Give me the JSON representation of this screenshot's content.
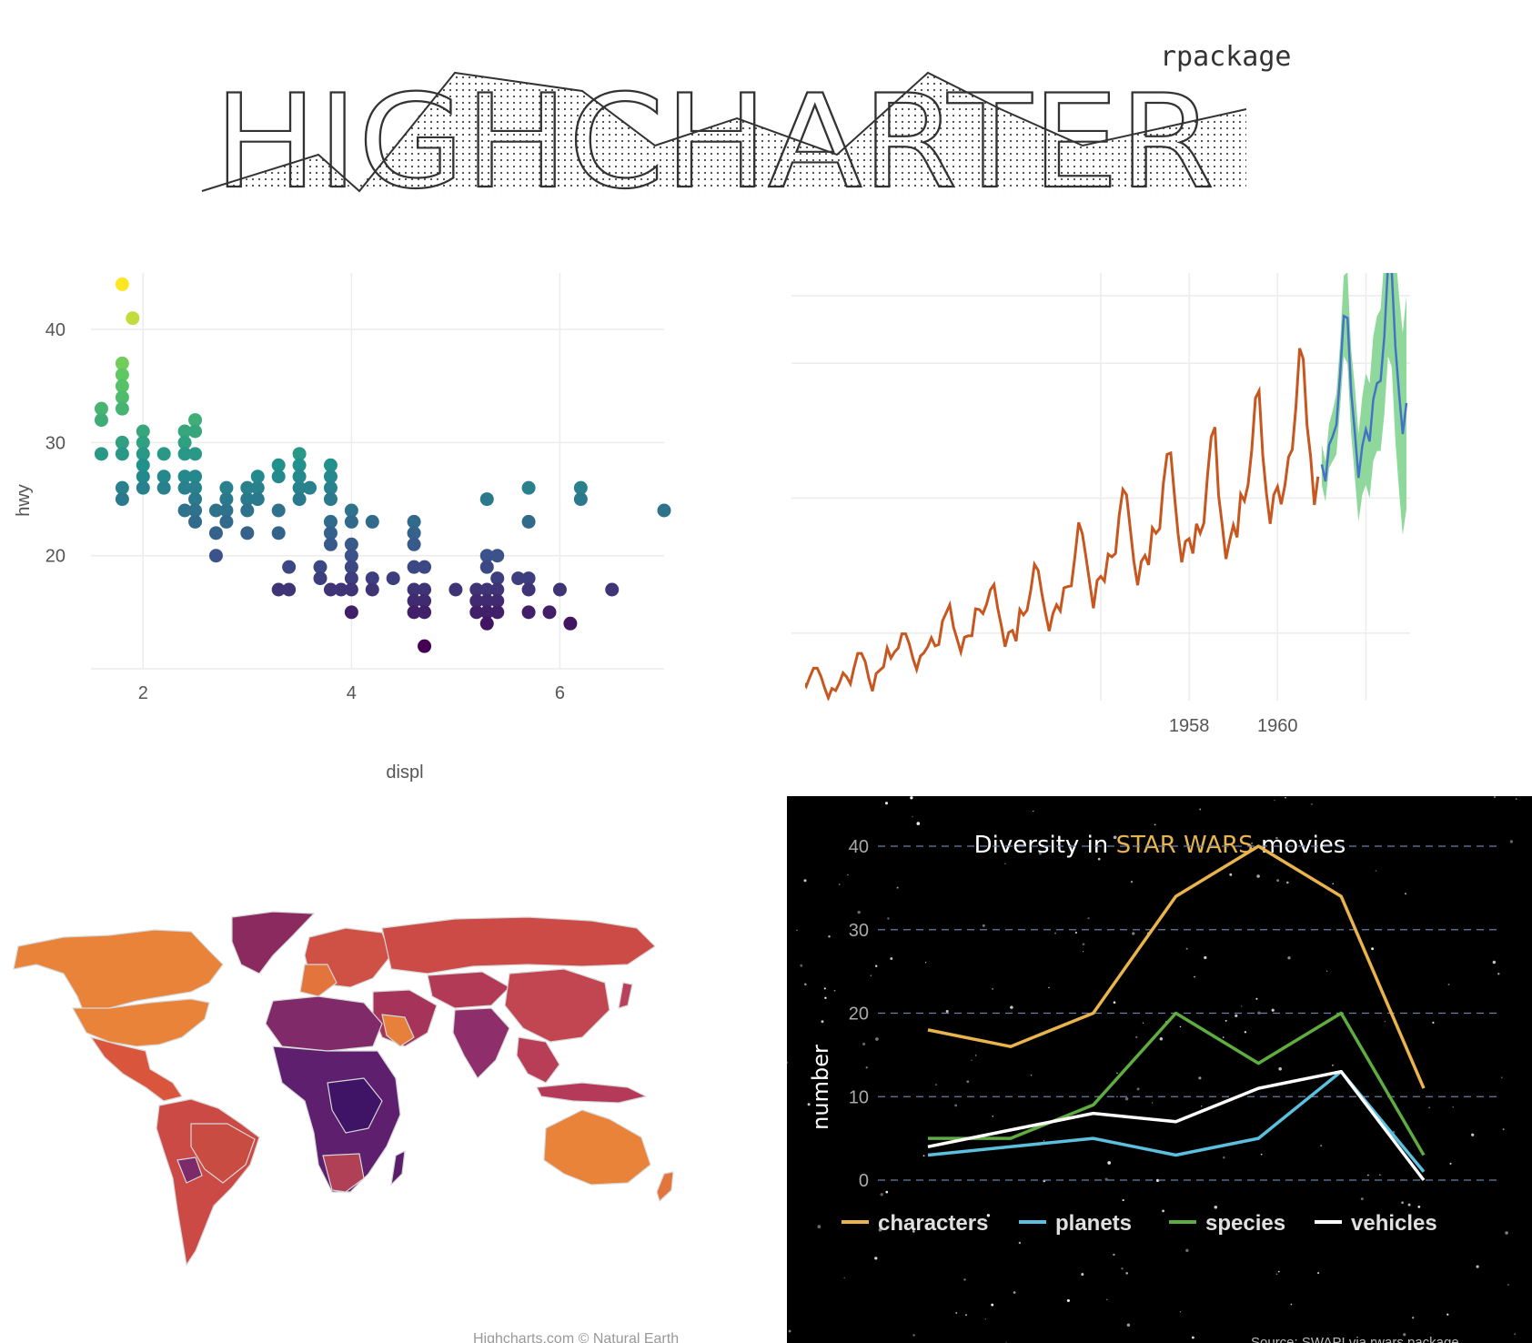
{
  "header": {
    "logo_text": "HIGHCHARTER",
    "subtitle": "rpackage"
  },
  "colors": {
    "airpass_line": "#c8561f",
    "forecast_line": "#4472c4",
    "forecast_band": "#8ed89c",
    "starwars_bg": "#000000",
    "starwars_title_accent": "#e9b44c"
  },
  "charts": [
    {
      "type": "scatter",
      "title": "",
      "xlabel": "displ",
      "ylabel": "hwy",
      "xlim": [
        1.5,
        7.0
      ],
      "ylim": [
        10,
        45
      ],
      "xticks": [
        2,
        4,
        6
      ],
      "yticks": [
        20,
        30,
        40
      ],
      "color_scale": "viridis",
      "color_by": "hwy",
      "points": [
        [
          1.8,
          44
        ],
        [
          1.9,
          41
        ],
        [
          1.8,
          37
        ],
        [
          1.8,
          36
        ],
        [
          1.8,
          35
        ],
        [
          1.8,
          34
        ],
        [
          1.8,
          33
        ],
        [
          1.6,
          33
        ],
        [
          1.6,
          32
        ],
        [
          1.6,
          29
        ],
        [
          1.8,
          30
        ],
        [
          1.8,
          29
        ],
        [
          1.8,
          26
        ],
        [
          1.8,
          25
        ],
        [
          2.0,
          31
        ],
        [
          2.0,
          30
        ],
        [
          2.0,
          29
        ],
        [
          2.0,
          28
        ],
        [
          2.0,
          27
        ],
        [
          2.0,
          26
        ],
        [
          2.2,
          29
        ],
        [
          2.2,
          27
        ],
        [
          2.2,
          26
        ],
        [
          2.4,
          31
        ],
        [
          2.4,
          30
        ],
        [
          2.4,
          29
        ],
        [
          2.4,
          27
        ],
        [
          2.4,
          26
        ],
        [
          2.4,
          24
        ],
        [
          2.5,
          32
        ],
        [
          2.5,
          31
        ],
        [
          2.5,
          29
        ],
        [
          2.5,
          27
        ],
        [
          2.5,
          26
        ],
        [
          2.5,
          25
        ],
        [
          2.5,
          24
        ],
        [
          2.5,
          23
        ],
        [
          2.7,
          24
        ],
        [
          2.7,
          22
        ],
        [
          2.7,
          20
        ],
        [
          2.8,
          26
        ],
        [
          2.8,
          25
        ],
        [
          2.8,
          24
        ],
        [
          2.8,
          23
        ],
        [
          3.0,
          26
        ],
        [
          3.0,
          25
        ],
        [
          3.0,
          24
        ],
        [
          3.0,
          22
        ],
        [
          3.1,
          27
        ],
        [
          3.1,
          26
        ],
        [
          3.1,
          25
        ],
        [
          3.3,
          28
        ],
        [
          3.3,
          27
        ],
        [
          3.3,
          24
        ],
        [
          3.3,
          22
        ],
        [
          3.3,
          17
        ],
        [
          3.4,
          19
        ],
        [
          3.4,
          17
        ],
        [
          3.5,
          29
        ],
        [
          3.5,
          28
        ],
        [
          3.5,
          27
        ],
        [
          3.5,
          26
        ],
        [
          3.5,
          25
        ],
        [
          3.6,
          26
        ],
        [
          3.7,
          19
        ],
        [
          3.7,
          18
        ],
        [
          3.8,
          28
        ],
        [
          3.8,
          27
        ],
        [
          3.8,
          26
        ],
        [
          3.8,
          25
        ],
        [
          3.8,
          23
        ],
        [
          3.8,
          22
        ],
        [
          3.8,
          21
        ],
        [
          3.8,
          17
        ],
        [
          3.9,
          17
        ],
        [
          4.0,
          24
        ],
        [
          4.0,
          23
        ],
        [
          4.0,
          21
        ],
        [
          4.0,
          20
        ],
        [
          4.0,
          19
        ],
        [
          4.0,
          18
        ],
        [
          4.0,
          17
        ],
        [
          4.0,
          15
        ],
        [
          4.2,
          23
        ],
        [
          4.2,
          18
        ],
        [
          4.2,
          17
        ],
        [
          4.4,
          18
        ],
        [
          4.6,
          23
        ],
        [
          4.6,
          22
        ],
        [
          4.6,
          21
        ],
        [
          4.6,
          19
        ],
        [
          4.6,
          17
        ],
        [
          4.6,
          16
        ],
        [
          4.6,
          15
        ],
        [
          4.7,
          19
        ],
        [
          4.7,
          17
        ],
        [
          4.7,
          16
        ],
        [
          4.7,
          15
        ],
        [
          4.7,
          12
        ],
        [
          5.0,
          17
        ],
        [
          5.2,
          17
        ],
        [
          5.2,
          16
        ],
        [
          5.2,
          15
        ],
        [
          5.3,
          25
        ],
        [
          5.3,
          20
        ],
        [
          5.3,
          19
        ],
        [
          5.3,
          17
        ],
        [
          5.3,
          16
        ],
        [
          5.3,
          15
        ],
        [
          5.3,
          14
        ],
        [
          5.4,
          20
        ],
        [
          5.4,
          18
        ],
        [
          5.4,
          17
        ],
        [
          5.4,
          16
        ],
        [
          5.4,
          15
        ],
        [
          5.6,
          18
        ],
        [
          5.7,
          26
        ],
        [
          5.7,
          23
        ],
        [
          5.7,
          18
        ],
        [
          5.7,
          17
        ],
        [
          5.7,
          15
        ],
        [
          5.9,
          15
        ],
        [
          6.0,
          17
        ],
        [
          6.1,
          14
        ],
        [
          6.2,
          26
        ],
        [
          6.2,
          25
        ],
        [
          6.5,
          17
        ],
        [
          7.0,
          24
        ]
      ]
    },
    {
      "type": "line",
      "title": "",
      "xlabel": "",
      "ylabel": "",
      "xlim": [
        1949.0,
        1963.0
      ],
      "ylim": [
        100,
        700
      ],
      "xticks": [
        1958,
        1960
      ],
      "yticks": [
        400,
        600
      ],
      "series": [
        {
          "x_start": 1949.0,
          "x_step": 0.0833333,
          "values": [
            112,
            118,
            132,
            129,
            121,
            135,
            148,
            148,
            136,
            119,
            104,
            118,
            115,
            126,
            141,
            135,
            125,
            149,
            170,
            170,
            158,
            133,
            114,
            140,
            145,
            150,
            178,
            163,
            172,
            178,
            199,
            199,
            184,
            162,
            146,
            166,
            171,
            180,
            193,
            181,
            183,
            218,
            230,
            242,
            209,
            191,
            172,
            194,
            196,
            196,
            236,
            235,
            229,
            243,
            264,
            272,
            237,
            211,
            180,
            201,
            204,
            188,
            235,
            227,
            234,
            264,
            302,
            293,
            259,
            229,
            203,
            229,
            242,
            233,
            267,
            269,
            270,
            315,
            364,
            347,
            312,
            274,
            237,
            278,
            284,
            277,
            317,
            313,
            318,
            374,
            413,
            405,
            355,
            306,
            271,
            306,
            315,
            301,
            356,
            348,
            355,
            422,
            465,
            467,
            404,
            347,
            305,
            336,
            340,
            318,
            362,
            348,
            363,
            435,
            491,
            505,
            404,
            359,
            310,
            337,
            360,
            342,
            406,
            396,
            420,
            472,
            548,
            559,
            463,
            407,
            362,
            405,
            417,
            391,
            419,
            461,
            472,
            535,
            622,
            606,
            508,
            461,
            390,
            432
          ]
        },
        {
          "x_start": 1961.0,
          "x_step": 0.0833333,
          "values": [
            450,
            425,
            479,
            492,
            509,
            583,
            670,
            667,
            558,
            497,
            430,
            477,
            502,
            484,
            546,
            570,
            574,
            640,
            745,
            737,
            625,
            555,
            495,
            541
          ],
          "lower": [
            420,
            395,
            445,
            455,
            465,
            535,
            610,
            600,
            495,
            430,
            365,
            405,
            420,
            400,
            455,
            470,
            470,
            525,
            610,
            595,
            485,
            410,
            345,
            385
          ],
          "upper": [
            480,
            455,
            510,
            530,
            555,
            630,
            730,
            735,
            620,
            565,
            495,
            550,
            585,
            570,
            640,
            670,
            680,
            755,
            880,
            880,
            765,
            700,
            645,
            700
          ]
        }
      ]
    },
    {
      "type": "heatmap",
      "title": "",
      "map_credit": "Highcharts.com © Natural Earth",
      "color_scale": "inferno"
    },
    {
      "type": "line",
      "title": "Diversity in STAR WARS movies",
      "title_parts": [
        "Diversity in ",
        "STAR WARS",
        " movies"
      ],
      "xlabel": "",
      "ylabel": "number",
      "ylim": [
        0,
        40
      ],
      "yticks": [
        0,
        10,
        20,
        30,
        40
      ],
      "x": [
        1,
        2,
        3,
        4,
        5,
        6,
        7
      ],
      "series": [
        {
          "name": "characters",
          "color": "#e9b44c",
          "values": [
            18,
            16,
            20,
            34,
            40,
            34,
            11
          ]
        },
        {
          "name": "planets",
          "color": "#5bc0de",
          "values": [
            3,
            4,
            5,
            3,
            5,
            13,
            1
          ]
        },
        {
          "name": "species",
          "color": "#5fad41",
          "values": [
            5,
            5,
            9,
            20,
            14,
            20,
            3
          ]
        },
        {
          "name": "vehicles",
          "color": "#ffffff",
          "values": [
            4,
            6,
            8,
            7,
            11,
            13,
            0
          ]
        }
      ],
      "legend": "bottom",
      "source": "Source: SWAPI via rwars package"
    }
  ]
}
